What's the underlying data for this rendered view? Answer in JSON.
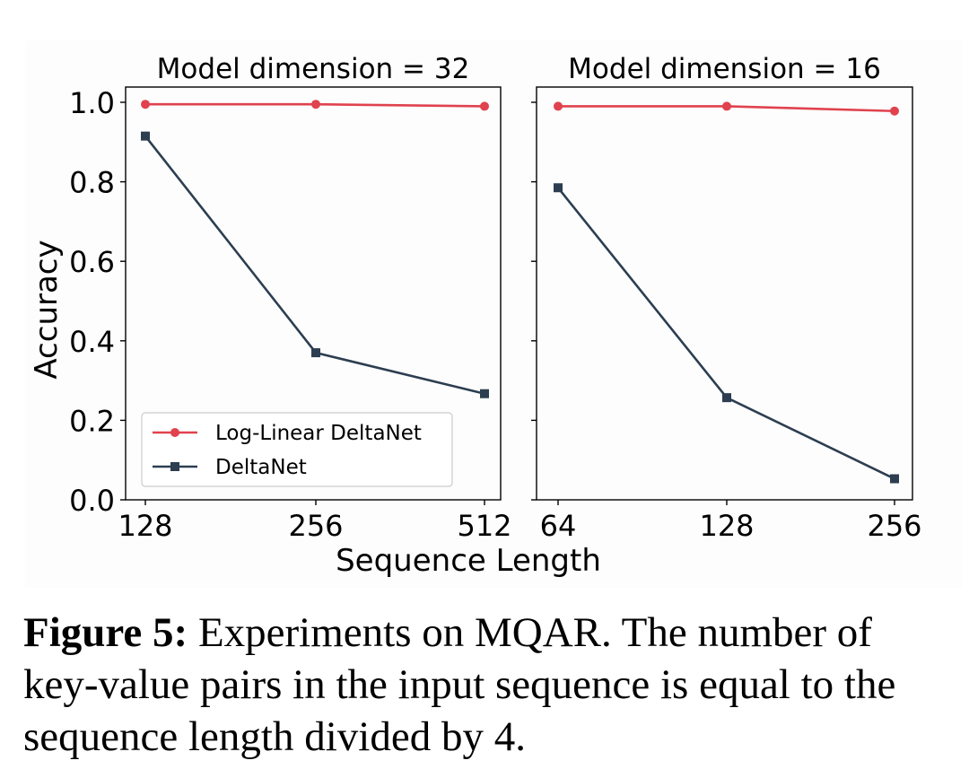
{
  "figure": {
    "xlabel": "Sequence Length",
    "ylabel": "Accuracy",
    "legend": [
      {
        "name": "Log-Linear DeltaNet",
        "color": "#e0424e",
        "marker": "circle"
      },
      {
        "name": "DeltaNet",
        "color": "#2c3e50",
        "marker": "square"
      }
    ]
  },
  "caption": {
    "label": "Figure 5:",
    "text": " Experiments on MQAR. The number of key-value pairs in the input sequence is equal to the sequence length divided by 4."
  },
  "chart_data": [
    {
      "type": "line",
      "title": "Model dimension = 32",
      "xlabel": "Sequence Length",
      "ylabel": "Accuracy",
      "categories": [
        "128",
        "256",
        "512"
      ],
      "ylim": [
        0.0,
        1.0
      ],
      "yticks": [
        "0.0",
        "0.2",
        "0.4",
        "0.6",
        "0.8",
        "1.0"
      ],
      "grid": false,
      "legend_position": "lower-left",
      "series": [
        {
          "name": "Log-Linear DeltaNet",
          "color": "#e0424e",
          "marker": "circle",
          "values": [
            0.995,
            0.995,
            0.99
          ]
        },
        {
          "name": "DeltaNet",
          "color": "#2c3e50",
          "marker": "square",
          "values": [
            0.915,
            0.37,
            0.267
          ]
        }
      ]
    },
    {
      "type": "line",
      "title": "Model dimension = 16",
      "xlabel": "Sequence Length",
      "categories": [
        "64",
        "128",
        "256"
      ],
      "ylim": [
        0.0,
        1.0
      ],
      "grid": false,
      "series": [
        {
          "name": "Log-Linear DeltaNet",
          "color": "#e0424e",
          "marker": "circle",
          "values": [
            0.99,
            0.99,
            0.978
          ]
        },
        {
          "name": "DeltaNet",
          "color": "#2c3e50",
          "marker": "square",
          "values": [
            0.785,
            0.257,
            0.053
          ]
        }
      ]
    }
  ]
}
